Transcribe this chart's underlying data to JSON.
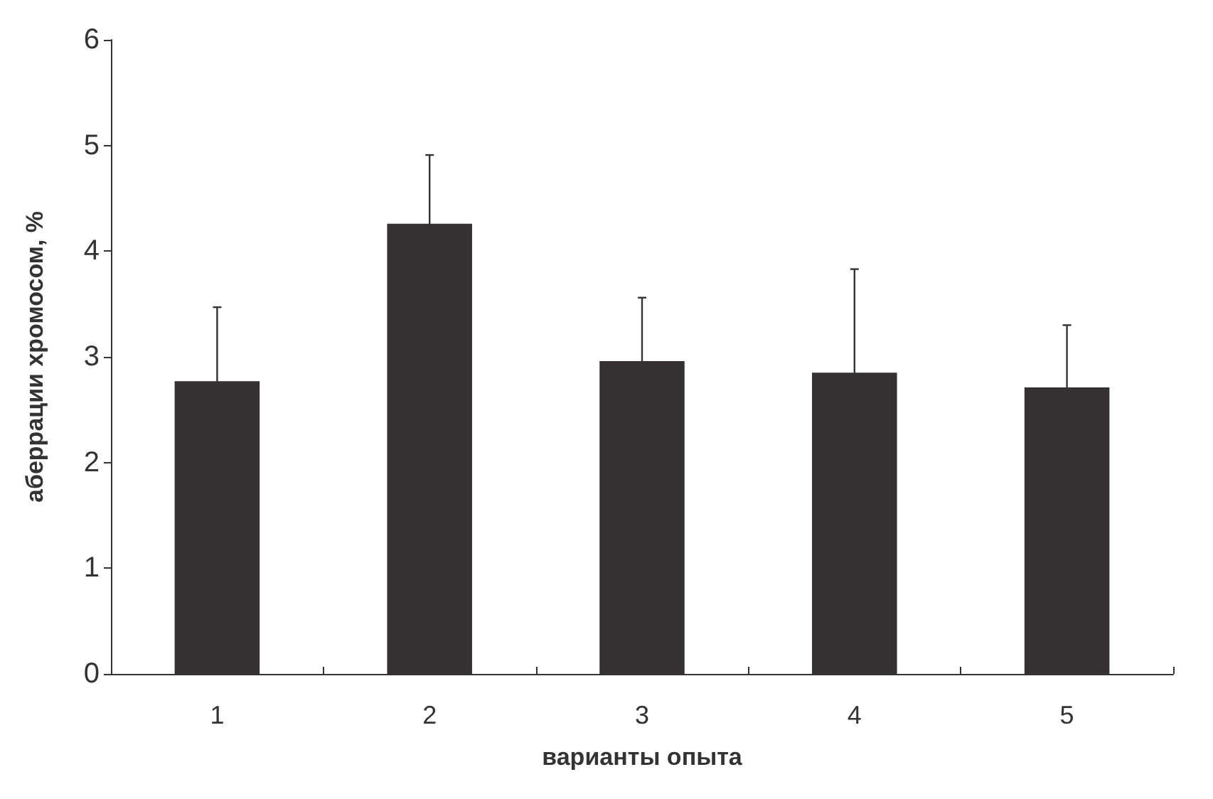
{
  "chart_data": {
    "type": "bar",
    "xlabel": "варианты опыта",
    "ylabel": "аберрации хромосом, %",
    "categories": [
      "1",
      "2",
      "3",
      "4",
      "5"
    ],
    "values": [
      2.77,
      4.26,
      2.96,
      2.85,
      2.71
    ],
    "errors": [
      0.7,
      0.65,
      0.6,
      0.98,
      0.59
    ],
    "color": "#353031",
    "ylim": [
      0,
      6
    ],
    "yticks": [
      0,
      1,
      2,
      3,
      4,
      5,
      6
    ],
    "grid": false
  }
}
